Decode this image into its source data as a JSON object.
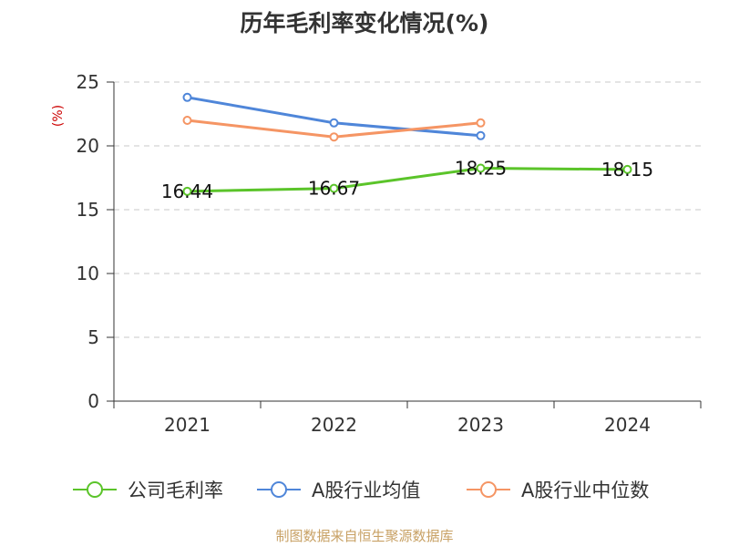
{
  "chart_data": {
    "type": "line",
    "title": "历年毛利率变化情况(%)",
    "ylabel": "(%)",
    "xlabel": "",
    "categories": [
      "2021",
      "2022",
      "2023",
      "2024"
    ],
    "ylim": [
      0,
      25
    ],
    "yticks": [
      "0",
      "5",
      "10",
      "15",
      "20",
      "25"
    ],
    "grid": true,
    "legend_position": "bottom",
    "series": [
      {
        "name": "公司毛利率",
        "color": "#5bc42a",
        "values": [
          16.44,
          16.67,
          18.25,
          18.15
        ],
        "value_labels": [
          "16.44",
          "16.67",
          "18.25",
          "18.15"
        ]
      },
      {
        "name": "A股行业均值",
        "color": "#4f86d9",
        "values": [
          23.8,
          21.8,
          20.8,
          null
        ]
      },
      {
        "name": "A股行业中位数",
        "color": "#f59564",
        "values": [
          22.0,
          20.7,
          21.8,
          null
        ]
      }
    ],
    "source": "制图数据来自恒生聚源数据库"
  }
}
